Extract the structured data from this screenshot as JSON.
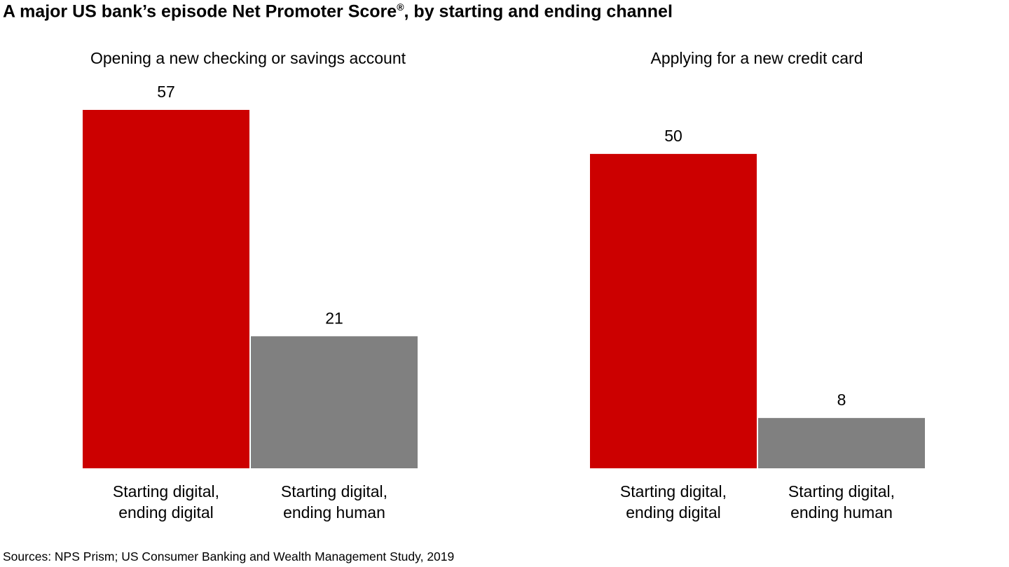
{
  "title": {
    "main": "A major US bank’s episode Net Promoter Score",
    "reg_mark": "®",
    "rest": ", by starting and ending channel"
  },
  "source": "Sources: NPS Prism; US Consumer Banking and Wealth Management Study, 2019",
  "colors": {
    "digital": "#cc0000",
    "human": "#808080"
  },
  "chart_data": [
    {
      "type": "bar",
      "title": "Opening a new checking or savings account",
      "categories": [
        [
          "Starting digital,",
          "ending digital"
        ],
        [
          "Starting digital,",
          "ending human"
        ]
      ],
      "values": [
        57,
        21
      ],
      "value_labels": [
        "57",
        "21"
      ],
      "bar_colors": [
        "#cc0000",
        "#808080"
      ],
      "ylim": [
        0,
        57
      ]
    },
    {
      "type": "bar",
      "title": "Applying for a new credit card",
      "categories": [
        [
          "Starting digital,",
          "ending digital"
        ],
        [
          "Starting digital,",
          "ending human"
        ]
      ],
      "values": [
        50,
        8
      ],
      "value_labels": [
        "50",
        "8"
      ],
      "bar_colors": [
        "#cc0000",
        "#808080"
      ],
      "ylim": [
        0,
        57
      ]
    }
  ]
}
